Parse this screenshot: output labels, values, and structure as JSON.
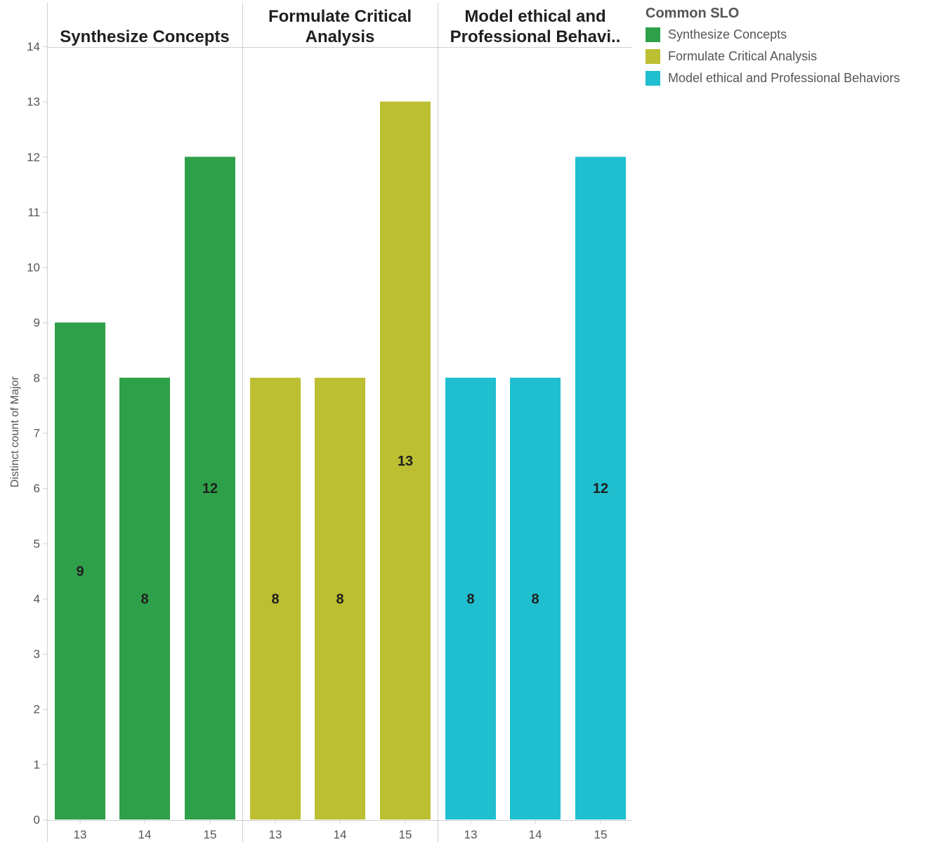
{
  "chart_data": {
    "type": "bar",
    "ylabel": "Distinct count of Major",
    "ylim": [
      0,
      14
    ],
    "yticks": [
      0,
      1,
      2,
      3,
      4,
      5,
      6,
      7,
      8,
      9,
      10,
      11,
      12,
      13,
      14
    ],
    "categories": [
      "13",
      "14",
      "15"
    ],
    "grid": false,
    "legend_placement": "top-right",
    "legend_title": "Common SLO",
    "panels": [
      {
        "title_lines": [
          "Synthesize Concepts"
        ],
        "series": "Synthesize Concepts",
        "color": "#2ea049",
        "values": [
          9,
          8,
          12
        ]
      },
      {
        "title_lines": [
          "Formulate Critical",
          "Analysis"
        ],
        "series": "Formulate Critical Analysis",
        "color": "#bcbf32",
        "values": [
          8,
          8,
          13
        ]
      },
      {
        "title_lines": [
          "Model ethical and",
          "Professional Behavi.."
        ],
        "series": "Model ethical and Professional Behaviors",
        "color": "#1fbfcf",
        "values": [
          8,
          8,
          12
        ]
      }
    ]
  },
  "legend": {
    "title": "Common SLO",
    "items": [
      {
        "label": "Synthesize Concepts",
        "color": "#2ea049"
      },
      {
        "label": "Formulate Critical Analysis",
        "color": "#bcbf32"
      },
      {
        "label": "Model ethical and Professional Behaviors",
        "color": "#1fbfcf"
      }
    ]
  }
}
